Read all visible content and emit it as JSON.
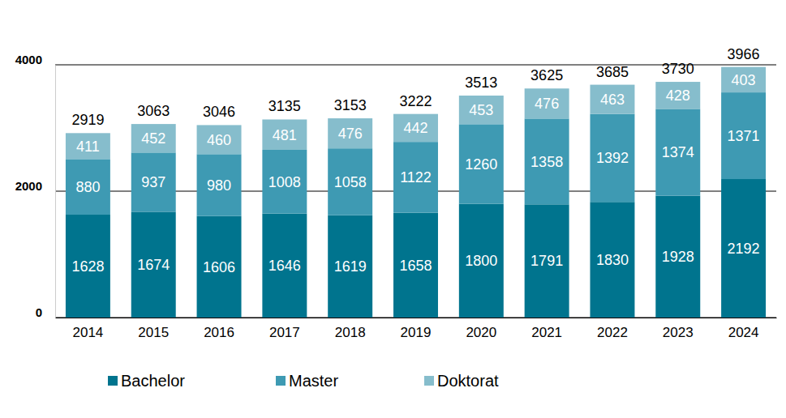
{
  "chart_data": {
    "type": "bar",
    "stacked": true,
    "data_labels": true,
    "grid": true,
    "legend": "bottom",
    "categories": [
      "2014",
      "2015",
      "2016",
      "2017",
      "2018",
      "2019",
      "2020",
      "2021",
      "2022",
      "2023",
      "2024"
    ],
    "series": [
      {
        "name": "Bachelor",
        "color": "#00748e",
        "values": [
          1628,
          1674,
          1606,
          1646,
          1619,
          1658,
          1800,
          1791,
          1830,
          1928,
          2192
        ]
      },
      {
        "name": "Master",
        "color": "#3e9ab3",
        "values": [
          880,
          937,
          980,
          1008,
          1058,
          1122,
          1260,
          1358,
          1392,
          1374,
          1371
        ]
      },
      {
        "name": "Doktorat",
        "color": "#86bdcc",
        "values": [
          411,
          452,
          460,
          481,
          476,
          442,
          453,
          476,
          463,
          428,
          403
        ]
      }
    ],
    "totals": [
      2919,
      3063,
      3046,
      3135,
      3153,
      3222,
      3513,
      3625,
      3685,
      3730,
      3966
    ],
    "ylim": [
      0,
      4000
    ],
    "yticks": [
      0,
      2000,
      4000
    ]
  }
}
